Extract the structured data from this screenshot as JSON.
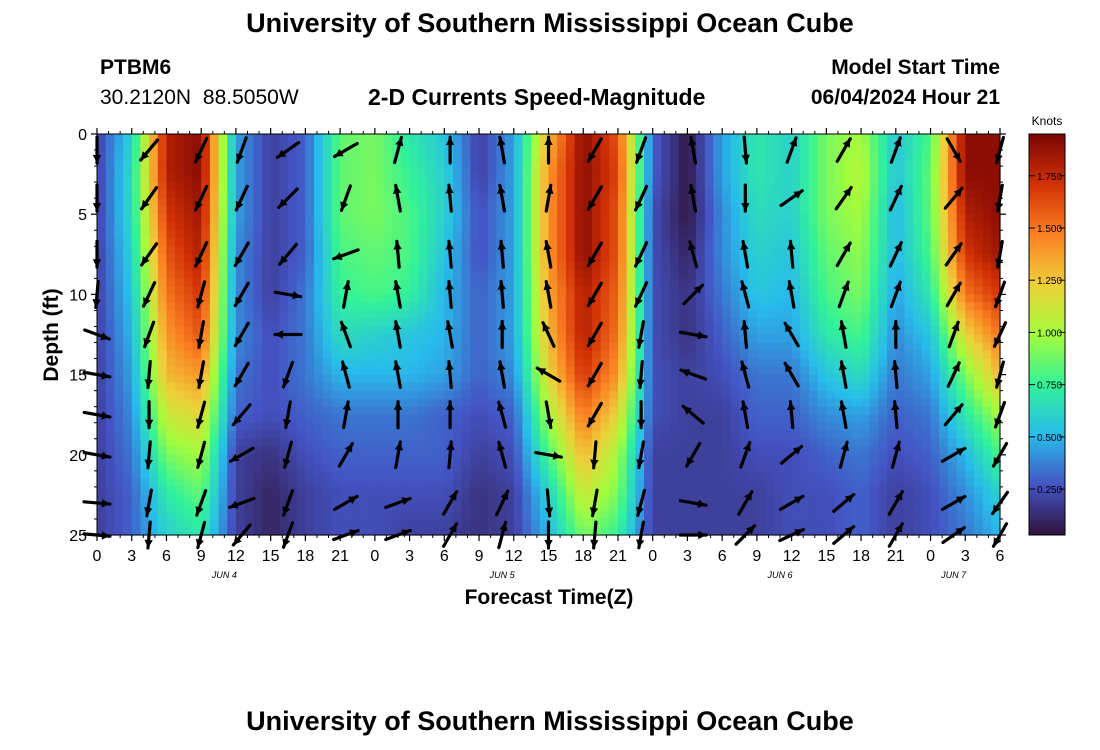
{
  "header": {
    "title": "University of Southern Mississippi Ocean Cube",
    "station": "PTBM6",
    "coordinates": "30.2120N  88.5050W",
    "subtitle": "2-D Currents Speed-Magnitude",
    "model_start_label": "Model Start Time",
    "model_start_value": "06/04/2024 Hour 21"
  },
  "footer": {
    "title": "University of Southern Mississippi Ocean Cube"
  },
  "colors": {
    "arrow": "#000000",
    "scale": [
      "#30123b",
      "#4454c4",
      "#28bceb",
      "#31f299",
      "#a4fc3c",
      "#eecf3a",
      "#fb8022",
      "#d23105",
      "#7a0403"
    ]
  },
  "chart_data": {
    "type": "heatmap",
    "ylabel": "Depth (ft)",
    "xlabel": "Forecast Time(Z)",
    "ylim": [
      0,
      25
    ],
    "xlim": [
      0,
      78
    ],
    "y_ticks": [
      "0",
      "5",
      "10",
      "15",
      "20",
      "25"
    ],
    "x_ticks": [
      "0",
      "3",
      "6",
      "9",
      "12",
      "15",
      "18",
      "21",
      "0",
      "3",
      "6",
      "9",
      "12",
      "15",
      "18",
      "21",
      "0",
      "3",
      "6",
      "9",
      "12",
      "15",
      "18",
      "21",
      "0",
      "3",
      "6"
    ],
    "date_labels": [
      {
        "label": "JUN 4",
        "hour": 11
      },
      {
        "label": "JUN 5",
        "hour": 35
      },
      {
        "label": "JUN 6",
        "hour": 59
      },
      {
        "label": "JUN 7",
        "hour": 74
      }
    ],
    "colorbar": {
      "units": "Knots",
      "min": 0.03,
      "max": 1.95,
      "tick_values": [
        0.25,
        0.5,
        0.75,
        1.0,
        1.25,
        1.5,
        1.75
      ],
      "tick_labels": [
        "0.250",
        "0.500",
        "0.750",
        "1.000",
        "1.250",
        "1.500",
        "1.750"
      ]
    },
    "speed_field": {
      "description": "Current speed (knots) by forecast hour column and depth row",
      "hours": [
        0,
        3,
        6,
        9,
        12,
        15,
        18,
        21,
        24,
        27,
        30,
        33,
        36,
        39,
        42,
        45,
        48,
        51,
        54,
        57,
        60,
        63,
        66,
        69,
        72,
        75,
        78
      ],
      "depths": [
        0,
        2.5,
        5,
        7.5,
        10,
        12.5,
        15,
        17.5,
        20,
        22.5,
        25
      ],
      "rows": [
        [
          0.2,
          0.6,
          1.8,
          1.9,
          0.45,
          0.2,
          0.3,
          0.85,
          0.9,
          0.7,
          0.55,
          0.2,
          0.45,
          1.3,
          1.9,
          1.6,
          0.3,
          0.05,
          0.45,
          0.7,
          0.6,
          0.9,
          1.0,
          0.55,
          0.8,
          1.9,
          1.9
        ],
        [
          0.2,
          0.65,
          1.8,
          1.9,
          0.45,
          0.2,
          0.3,
          0.85,
          0.9,
          0.75,
          0.6,
          0.2,
          0.45,
          1.4,
          1.9,
          1.65,
          0.3,
          0.05,
          0.45,
          0.7,
          0.6,
          0.9,
          1.05,
          0.55,
          0.85,
          1.9,
          1.9
        ],
        [
          0.2,
          0.65,
          1.7,
          1.85,
          0.45,
          0.2,
          0.3,
          0.85,
          0.9,
          0.8,
          0.6,
          0.25,
          0.45,
          1.4,
          1.9,
          1.6,
          0.25,
          0.05,
          0.4,
          0.65,
          0.6,
          0.9,
          1.0,
          0.5,
          0.85,
          1.8,
          1.9
        ],
        [
          0.2,
          0.6,
          1.6,
          1.8,
          0.4,
          0.2,
          0.3,
          0.8,
          0.85,
          0.8,
          0.55,
          0.25,
          0.45,
          1.4,
          1.9,
          1.6,
          0.25,
          0.1,
          0.4,
          0.6,
          0.55,
          0.85,
          0.95,
          0.5,
          0.8,
          1.7,
          1.85
        ],
        [
          0.2,
          0.55,
          1.5,
          1.7,
          0.4,
          0.2,
          0.35,
          0.75,
          0.8,
          0.75,
          0.5,
          0.3,
          0.45,
          1.35,
          1.8,
          1.55,
          0.25,
          0.15,
          0.35,
          0.55,
          0.5,
          0.8,
          0.9,
          0.45,
          0.7,
          1.5,
          1.7
        ],
        [
          0.2,
          0.5,
          1.4,
          1.6,
          0.4,
          0.25,
          0.35,
          0.65,
          0.6,
          0.55,
          0.5,
          0.3,
          0.45,
          1.3,
          1.8,
          1.5,
          0.25,
          0.15,
          0.3,
          0.45,
          0.45,
          0.7,
          0.8,
          0.4,
          0.55,
          1.2,
          1.5
        ],
        [
          0.2,
          0.45,
          1.3,
          1.4,
          0.35,
          0.25,
          0.35,
          0.5,
          0.5,
          0.5,
          0.45,
          0.3,
          0.4,
          1.2,
          1.7,
          1.4,
          0.25,
          0.2,
          0.25,
          0.35,
          0.35,
          0.55,
          0.65,
          0.35,
          0.45,
          0.9,
          1.3
        ],
        [
          0.2,
          0.4,
          1.1,
          1.2,
          0.3,
          0.25,
          0.3,
          0.35,
          0.35,
          0.35,
          0.3,
          0.25,
          0.3,
          1.0,
          1.5,
          1.2,
          0.25,
          0.2,
          0.2,
          0.3,
          0.3,
          0.4,
          0.45,
          0.3,
          0.35,
          0.7,
          1.0
        ],
        [
          0.2,
          0.35,
          0.9,
          1.0,
          0.2,
          0.15,
          0.25,
          0.3,
          0.3,
          0.3,
          0.3,
          0.2,
          0.25,
          0.8,
          1.3,
          1.0,
          0.2,
          0.2,
          0.2,
          0.25,
          0.25,
          0.3,
          0.35,
          0.25,
          0.3,
          0.5,
          0.8
        ],
        [
          0.2,
          0.3,
          0.7,
          0.85,
          0.2,
          0.1,
          0.2,
          0.25,
          0.25,
          0.25,
          0.25,
          0.15,
          0.2,
          0.6,
          1.1,
          0.9,
          0.2,
          0.2,
          0.2,
          0.2,
          0.25,
          0.25,
          0.3,
          0.2,
          0.25,
          0.4,
          0.6
        ],
        [
          0.2,
          0.3,
          0.6,
          0.7,
          0.2,
          0.1,
          0.2,
          0.25,
          0.25,
          0.2,
          0.2,
          0.15,
          0.2,
          0.5,
          0.9,
          0.75,
          0.2,
          0.2,
          0.2,
          0.2,
          0.25,
          0.25,
          0.3,
          0.2,
          0.25,
          0.35,
          0.5
        ]
      ]
    },
    "vectors": {
      "description": "Current direction in degrees clockwise from north, sampled at hour x depth grid",
      "hours": [
        0,
        4.5,
        9,
        12.5,
        16.5,
        21.5,
        26,
        30.5,
        35,
        39,
        43,
        47,
        51.5,
        56,
        60,
        64.5,
        69,
        74,
        78
      ],
      "depths": [
        1,
        4,
        7.5,
        10,
        12.5,
        15,
        17.5,
        20,
        23,
        25
      ],
      "rows": [
        [
          180,
          220,
          205,
          200,
          235,
          240,
          15,
          0,
          350,
          0,
          210,
          200,
          350,
          175,
          20,
          30,
          20,
          150,
          195
        ],
        [
          180,
          215,
          205,
          205,
          225,
          200,
          350,
          355,
          350,
          10,
          210,
          205,
          350,
          180,
          55,
          35,
          25,
          40,
          190
        ],
        [
          180,
          215,
          205,
          210,
          220,
          250,
          355,
          355,
          355,
          350,
          210,
          205,
          345,
          350,
          355,
          30,
          25,
          35,
          190
        ],
        [
          185,
          205,
          195,
          210,
          100,
          10,
          350,
          355,
          355,
          350,
          210,
          205,
          45,
          345,
          350,
          20,
          20,
          30,
          200
        ],
        [
          110,
          200,
          190,
          210,
          270,
          340,
          350,
          350,
          360,
          335,
          210,
          190,
          100,
          355,
          330,
          350,
          360,
          20,
          205
        ],
        [
          100,
          185,
          190,
          210,
          200,
          345,
          350,
          355,
          350,
          300,
          210,
          185,
          290,
          345,
          330,
          350,
          355,
          25,
          195
        ],
        [
          100,
          180,
          195,
          220,
          190,
          10,
          360,
          360,
          345,
          170,
          210,
          180,
          310,
          350,
          355,
          350,
          355,
          40,
          200
        ],
        [
          100,
          185,
          195,
          240,
          195,
          30,
          10,
          5,
          345,
          100,
          185,
          190,
          210,
          20,
          50,
          15,
          15,
          60,
          210
        ],
        [
          95,
          190,
          200,
          250,
          200,
          60,
          70,
          30,
          25,
          175,
          190,
          195,
          100,
          30,
          60,
          50,
          30,
          60,
          215
        ],
        [
          95,
          185,
          195,
          220,
          200,
          70,
          70,
          30,
          15,
          180,
          185,
          190,
          90,
          45,
          65,
          50,
          30,
          55,
          210
        ]
      ]
    }
  }
}
